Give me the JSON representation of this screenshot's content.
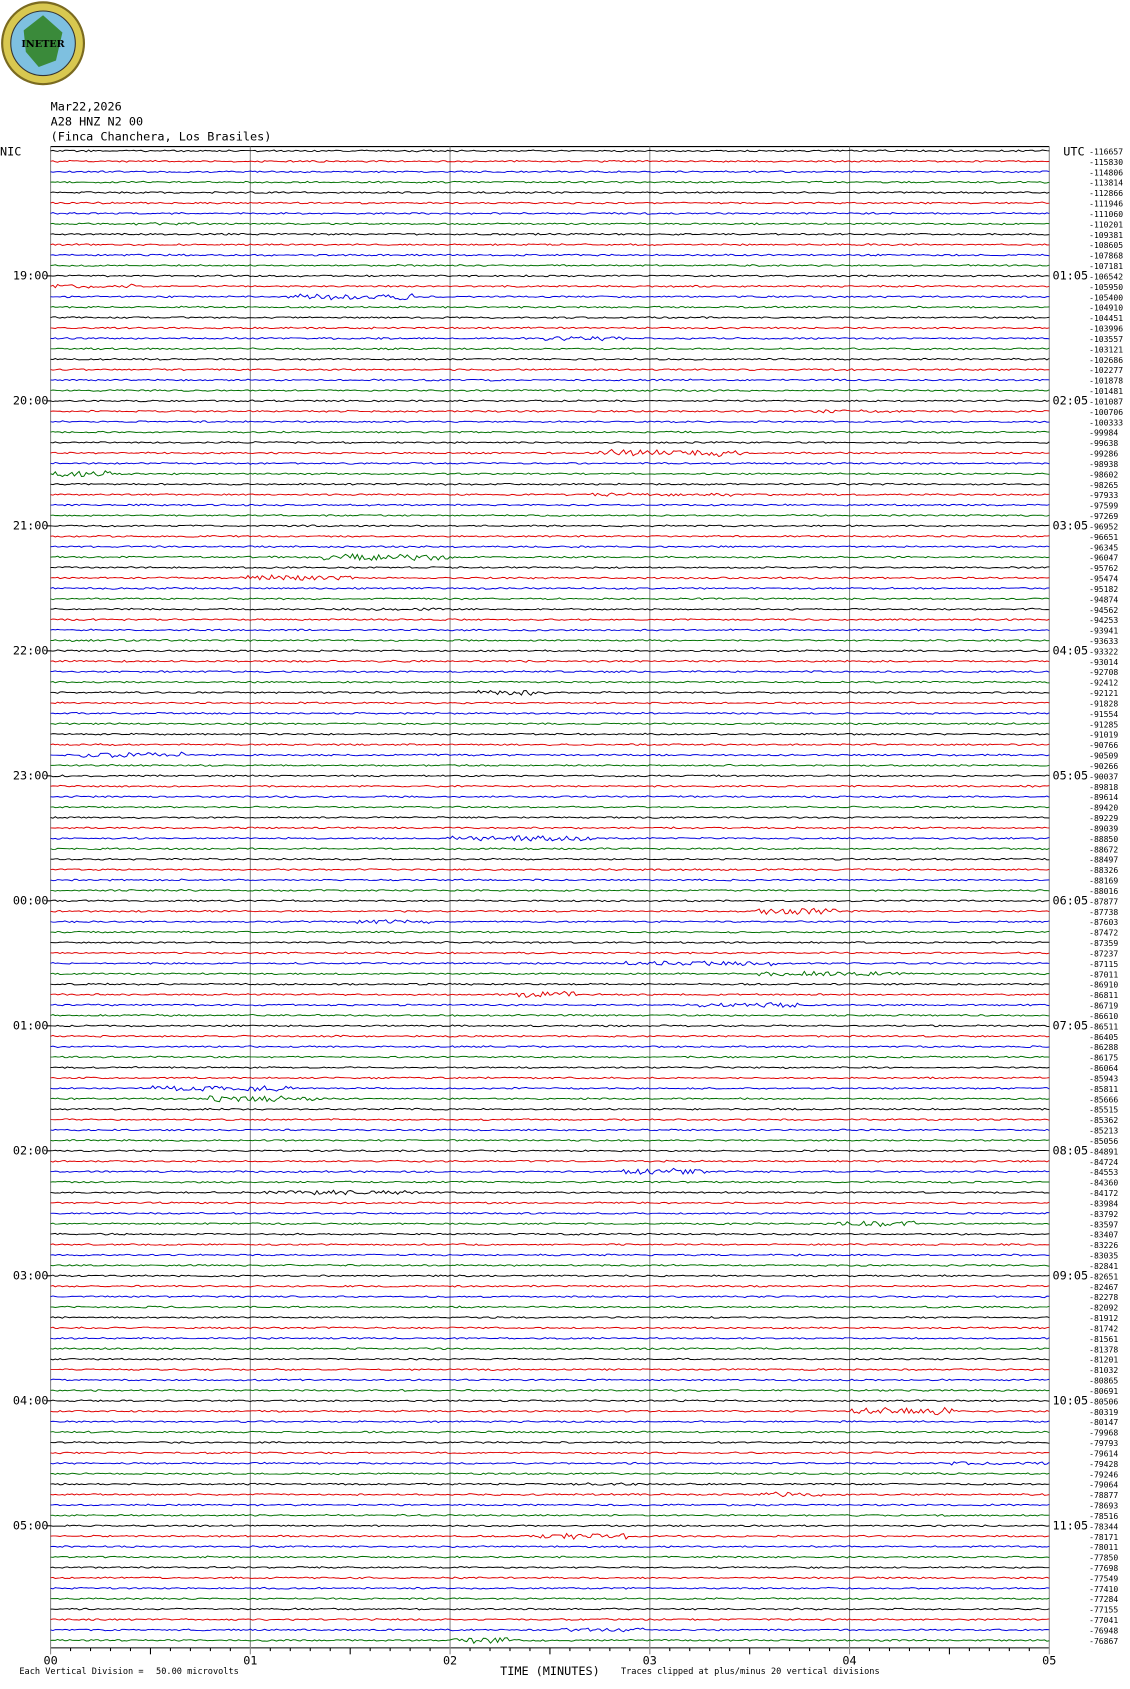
{
  "logo_text": "INETER",
  "header": {
    "date": "Mar22,2026",
    "station": "A28 HNZ N2 00",
    "location": "(Finca Chanchera, Los Brasiles)"
  },
  "left_zone": "NIC",
  "right_zone": "UTC",
  "left_hours": [
    "19:00",
    "20:00",
    "21:00",
    "22:00",
    "23:00",
    "00:00",
    "01:00",
    "02:00",
    "03:00",
    "04:00",
    "05:00"
  ],
  "right_hours": [
    "01:05",
    "02:05",
    "03:05",
    "04:05",
    "05:05",
    "06:05",
    "07:05",
    "08:05",
    "09:05",
    "10:05",
    "11:05"
  ],
  "trace_colors": [
    "#000000",
    "#e00000",
    "#0000e0",
    "#007000"
  ],
  "trace_offsets": [
    -116657,
    -115830,
    -114806,
    -113814,
    -112866,
    -111946,
    -111060,
    -110201,
    -109381,
    -108605,
    -107868,
    -107181,
    -106542,
    -105950,
    -105400,
    -104910,
    -104451,
    -103996,
    -103557,
    -103121,
    -102686,
    -102277,
    -101878,
    -101481,
    -101087,
    -100706,
    -100333,
    -99984,
    -99638,
    -99286,
    -98938,
    -98602,
    -98265,
    -97933,
    -97599,
    -97269,
    -96952,
    -96651,
    -96345,
    -96047,
    -95762,
    -95474,
    -95182,
    -94874,
    -94562,
    -94253,
    -93941,
    -93633,
    -93322,
    -93014,
    -92708,
    -92412,
    -92121,
    -91828,
    -91554,
    -91285,
    -91019,
    -90766,
    -90509,
    -90266,
    -90037,
    -89818,
    -89614,
    -89420,
    -89229,
    -89039,
    -88850,
    -88672,
    -88497,
    -88326,
    -88169,
    -88016,
    -87877,
    -87738,
    -87603,
    -87472,
    -87359,
    -87237,
    -87115,
    -87011,
    -86910,
    -86811,
    -86719,
    -86610,
    -86511,
    -86405,
    -86288,
    -86175,
    -86064,
    -85943,
    -85811,
    -85666,
    -85515,
    -85362,
    -85213,
    -85056,
    -84891,
    -84724,
    -84553,
    -84360,
    -84172,
    -83984,
    -83792,
    -83597,
    -83407,
    -83226,
    -83035,
    -82841,
    -82651,
    -82467,
    -82278,
    -82092,
    -81912,
    -81742,
    -81561,
    -81378,
    -81201,
    -81032,
    -80865,
    -80691,
    -80506,
    -80319,
    -80147,
    -79968,
    -79793,
    -79614,
    -79428,
    -79246,
    -79064,
    -78877,
    -78693,
    -78516,
    -78344,
    -78171,
    -78011,
    -77850,
    -77698,
    -77549,
    -77410,
    -77284,
    -77155,
    -77041,
    -76948,
    -76867
  ],
  "x_ticks": [
    "00",
    "01",
    "02",
    "03",
    "04",
    "05"
  ],
  "x_label": "TIME (MINUTES)",
  "footer": {
    "division": "Each Vertical Division =",
    "microvolts": "50.00 microvolts",
    "clip": "Traces clipped at plus/minus 20 vertical divisions"
  }
}
